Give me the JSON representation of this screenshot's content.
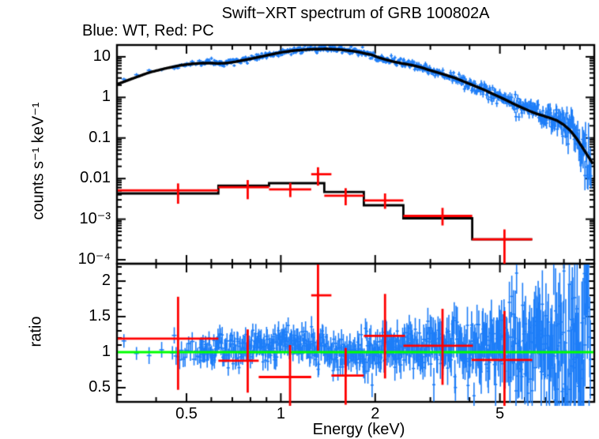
{
  "figure": {
    "title": "Swift−XRT spectrum of GRB 100802A",
    "subtitle": "Blue: WT, Red: PC",
    "colors": {
      "wt_blue": "#1e7ef8",
      "pc_red": "#ff0000",
      "model_black": "#000000",
      "reference_green": "#00ff00",
      "background": "#ffffff"
    }
  },
  "chart_data": [
    {
      "id": "spectrum-panel",
      "type": "scatter",
      "title": "Swift−XRT spectrum of GRB 100802A",
      "subtitle": "Blue: WT, Red: PC",
      "ylabel": "counts s⁻¹ keV⁻¹",
      "legend": {
        "blue_series": "WT",
        "red_series": "PC",
        "position": "top-left-text"
      },
      "x_axis": {
        "scale": "log",
        "min": 0.3,
        "max": 10,
        "unit": "keV"
      },
      "y_axis": {
        "scale": "log",
        "min": 8e-05,
        "max": 19.5
      },
      "x_ticks": [
        {
          "v": 0.5,
          "label": "0.5"
        },
        {
          "v": 1,
          "label": "1"
        },
        {
          "v": 2,
          "label": "2"
        },
        {
          "v": 5,
          "label": "5"
        }
      ],
      "x_minor_ticks": [
        0.4,
        0.6,
        0.7,
        0.8,
        0.9,
        3,
        4,
        6,
        7,
        8,
        9
      ],
      "y_ticks": [
        {
          "v": 10,
          "label": "10"
        },
        {
          "v": 1,
          "label": "1"
        },
        {
          "v": 0.1,
          "label": "0.1"
        },
        {
          "v": 0.01,
          "label": "0.01"
        },
        {
          "v": 0.001,
          "label": "10⁻³"
        },
        {
          "v": 0.0001,
          "label": "10⁻⁴"
        }
      ],
      "series": {
        "wt_model": [
          [
            0.3,
            2.1
          ],
          [
            0.34,
            3.0
          ],
          [
            0.38,
            4.1
          ],
          [
            0.43,
            5.2
          ],
          [
            0.48,
            6.2
          ],
          [
            0.52,
            6.7
          ],
          [
            0.56,
            6.95
          ],
          [
            0.6,
            7.0
          ],
          [
            0.63,
            6.85
          ],
          [
            0.67,
            7.0
          ],
          [
            0.72,
            7.6
          ],
          [
            0.8,
            8.9
          ],
          [
            0.9,
            10.8
          ],
          [
            1.0,
            12.8
          ],
          [
            1.1,
            14.2
          ],
          [
            1.25,
            15.3
          ],
          [
            1.4,
            15.6
          ],
          [
            1.55,
            15.0
          ],
          [
            1.7,
            13.8
          ],
          [
            1.78,
            13.0
          ],
          [
            1.86,
            12.0
          ],
          [
            1.95,
            11.2
          ],
          [
            2.05,
            9.6
          ],
          [
            2.15,
            8.6
          ],
          [
            2.3,
            7.5
          ],
          [
            2.45,
            6.8
          ],
          [
            2.6,
            6.3
          ],
          [
            2.8,
            5.5
          ],
          [
            3.0,
            4.6
          ],
          [
            3.3,
            3.7
          ],
          [
            3.6,
            3.0
          ],
          [
            4.0,
            2.15
          ],
          [
            4.4,
            1.6
          ],
          [
            4.8,
            1.17
          ],
          [
            5.2,
            0.88
          ],
          [
            5.6,
            0.66
          ],
          [
            6.0,
            0.52
          ],
          [
            6.4,
            0.42
          ],
          [
            6.8,
            0.36
          ],
          [
            7.2,
            0.315
          ],
          [
            7.6,
            0.27
          ],
          [
            8.0,
            0.21
          ],
          [
            8.4,
            0.15
          ],
          [
            8.8,
            0.095
          ],
          [
            9.2,
            0.056
          ],
          [
            9.5,
            0.038
          ],
          [
            9.75,
            0.028
          ],
          [
            9.9,
            0.023
          ]
        ],
        "wt_data_noise": {
          "n": 780,
          "seed": 1020,
          "emin": 0.315,
          "emax": 9.78,
          "sigma_log10": [
            [
              0.3,
              0.033
            ],
            [
              1.5,
              0.037
            ],
            [
              3,
              0.05
            ],
            [
              5,
              0.085
            ],
            [
              7,
              0.14
            ],
            [
              8.5,
              0.22
            ],
            [
              9.9,
              0.32
            ]
          ]
        },
        "pc_model_steps": [
          {
            "elo": 0.3,
            "ehi": 0.632,
            "y": 0.0043
          },
          {
            "elo": 0.632,
            "ehi": 0.917,
            "y": 0.0067
          },
          {
            "elo": 0.917,
            "ehi": 1.376,
            "y": 0.0077
          },
          {
            "elo": 1.376,
            "ehi": 1.84,
            "y": 0.0047
          },
          {
            "elo": 1.84,
            "ehi": 2.46,
            "y": 0.0022
          },
          {
            "elo": 2.46,
            "ehi": 4.08,
            "y": 0.00105
          },
          {
            "elo": 4.08,
            "ehi": 6.34,
            "y": 0.00032
          }
        ],
        "pc_data": [
          {
            "e": 0.47,
            "elo": 0.3,
            "ehi": 0.632,
            "y": 0.0051,
            "ylo": 0.0024,
            "yhi": 0.0076
          },
          {
            "e": 0.784,
            "elo": 0.632,
            "ehi": 0.917,
            "y": 0.0061,
            "ylo": 0.0031,
            "yhi": 0.0092
          },
          {
            "e": 1.072,
            "elo": 0.917,
            "ehi": 1.25,
            "y": 0.0054,
            "ylo": 0.0035,
            "yhi": 0.0078
          },
          {
            "e": 1.314,
            "elo": 1.25,
            "ehi": 1.45,
            "y": 0.0128,
            "ylo": 0.0067,
            "yhi": 0.019
          },
          {
            "e": 1.61,
            "elo": 1.376,
            "ehi": 1.84,
            "y": 0.0038,
            "ylo": 0.0022,
            "yhi": 0.0058
          },
          {
            "e": 2.15,
            "elo": 1.84,
            "ehi": 2.46,
            "y": 0.0029,
            "ylo": 0.0018,
            "yhi": 0.0043
          },
          {
            "e": 3.28,
            "elo": 2.46,
            "ehi": 4.08,
            "y": 0.0012,
            "ylo": 0.0007,
            "yhi": 0.0019
          },
          {
            "e": 5.17,
            "elo": 4.08,
            "ehi": 6.34,
            "y": 0.00032,
            "ylo": 8e-05,
            "yhi": 0.00056
          }
        ]
      }
    },
    {
      "id": "ratio-panel",
      "type": "scatter",
      "ylabel": "ratio",
      "xlabel": "Energy (keV)",
      "x_axis": {
        "scale": "log",
        "min": 0.3,
        "max": 10,
        "unit": "keV"
      },
      "y_axis": {
        "scale": "linear",
        "min": 0.3,
        "max": 2.245
      },
      "y_ticks": [
        {
          "v": 0.5,
          "label": "0.5"
        },
        {
          "v": 1,
          "label": "1"
        },
        {
          "v": 1.5,
          "label": "1.5"
        },
        {
          "v": 2,
          "label": "2"
        }
      ],
      "y_minor_step": 0.1,
      "reference_line": {
        "value": 1,
        "color": "#00ff00"
      },
      "series": {
        "wt_ratio_noise": {
          "n": 780,
          "seed": 807,
          "emin": 0.315,
          "emax": 9.78,
          "sigma": [
            [
              0.3,
              0.1
            ],
            [
              0.7,
              0.105
            ],
            [
              1.5,
              0.12
            ],
            [
              2.5,
              0.16
            ],
            [
              4,
              0.22
            ],
            [
              6,
              0.33
            ],
            [
              8,
              0.5
            ],
            [
              9.9,
              0.6
            ]
          ],
          "bias": [
            [
              0.3,
              -0.02
            ],
            [
              0.55,
              0.02
            ],
            [
              0.75,
              0.07
            ],
            [
              1.0,
              0.1
            ],
            [
              1.25,
              0.06
            ],
            [
              1.5,
              -0.02
            ],
            [
              1.8,
              -0.04
            ],
            [
              2.2,
              0.02
            ],
            [
              3,
              0.04
            ],
            [
              4,
              0.0
            ],
            [
              6,
              0.02
            ],
            [
              9.9,
              0.05
            ]
          ]
        },
        "pc_ratio": [
          {
            "e": 0.47,
            "elo": 0.3,
            "ehi": 0.632,
            "r": 1.19,
            "rlo": 0.47,
            "rhi": 1.78
          },
          {
            "e": 0.784,
            "elo": 0.632,
            "ehi": 0.85,
            "r": 0.88,
            "rlo": 0.43,
            "rhi": 1.32
          },
          {
            "e": 1.07,
            "elo": 0.85,
            "ehi": 1.25,
            "r": 0.65,
            "rlo": 0.2,
            "rhi": 1.1
          },
          {
            "e": 1.314,
            "elo": 1.25,
            "ehi": 1.45,
            "r": 1.8,
            "rlo": 1.02,
            "rhi": 2.26
          },
          {
            "e": 1.61,
            "elo": 1.45,
            "ehi": 1.84,
            "r": 0.67,
            "rlo": 0.26,
            "rhi": 1.06
          },
          {
            "e": 2.15,
            "elo": 1.84,
            "ehi": 2.49,
            "r": 1.23,
            "rlo": 0.63,
            "rhi": 1.82
          },
          {
            "e": 3.28,
            "elo": 2.46,
            "ehi": 4.1,
            "r": 1.09,
            "rlo": 0.54,
            "rhi": 1.61
          },
          {
            "e": 5.17,
            "elo": 4.06,
            "ehi": 6.34,
            "r": 0.89,
            "rlo": 0.24,
            "rhi": 1.58
          }
        ]
      }
    }
  ]
}
